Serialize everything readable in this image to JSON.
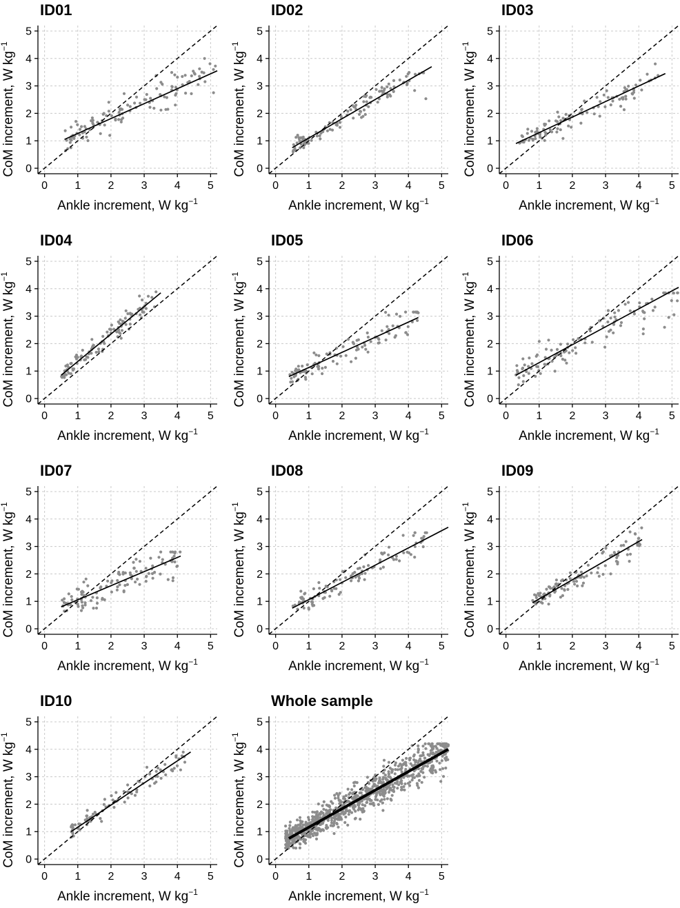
{
  "figure": {
    "xlabel": "Ankle increment, W kg",
    "ylabel": "CoM increment, W kg",
    "unit_exponent": "−1",
    "axis_ticks": [
      0,
      1,
      2,
      3,
      4,
      5
    ],
    "colors": {
      "points": "#8c8c8c",
      "lines": "#000000",
      "grid": "#c8c8c8"
    }
  },
  "chart_data": [
    {
      "type": "scatter",
      "title": "ID01",
      "xlim": [
        -0.2,
        5.2
      ],
      "ylim": [
        -0.2,
        5.2
      ],
      "xlabel": "Ankle increment, W kg⁻¹",
      "ylabel": "CoM increment, W kg⁻¹",
      "grid": true,
      "reference_line": "identity (dashed)",
      "fit": {
        "x": [
          0.6,
          5.2
        ],
        "y": [
          1.05,
          3.55
        ]
      },
      "points": {
        "n": 120,
        "x_range": [
          0.6,
          5.2
        ],
        "y_range": [
          0.55,
          4.0
        ],
        "spread": 0.38,
        "seed": 1
      }
    },
    {
      "type": "scatter",
      "title": "ID02",
      "xlim": [
        -0.2,
        5.2
      ],
      "ylim": [
        -0.2,
        5.2
      ],
      "xlabel": "Ankle increment, W kg⁻¹",
      "ylabel": "CoM increment, W kg⁻¹",
      "grid": true,
      "reference_line": "identity (dashed)",
      "fit": {
        "x": [
          0.5,
          4.7
        ],
        "y": [
          0.75,
          3.7
        ]
      },
      "points": {
        "n": 120,
        "x_range": [
          0.5,
          4.6
        ],
        "y_range": [
          0.6,
          3.9
        ],
        "spread": 0.26,
        "seed": 2
      }
    },
    {
      "type": "scatter",
      "title": "ID03",
      "xlim": [
        -0.2,
        5.2
      ],
      "ylim": [
        -0.2,
        5.2
      ],
      "xlabel": "Ankle increment, W kg⁻¹",
      "ylabel": "CoM increment, W kg⁻¹",
      "grid": true,
      "reference_line": "identity (dashed)",
      "fit": {
        "x": [
          0.3,
          4.8
        ],
        "y": [
          0.9,
          3.45
        ]
      },
      "points": {
        "n": 110,
        "x_range": [
          0.4,
          4.6
        ],
        "y_range": [
          0.6,
          3.8
        ],
        "spread": 0.3,
        "seed": 3
      }
    },
    {
      "type": "scatter",
      "title": "ID04",
      "xlim": [
        -0.2,
        5.2
      ],
      "ylim": [
        -0.2,
        5.2
      ],
      "xlabel": "Ankle increment, W kg⁻¹",
      "ylabel": "CoM increment, W kg⁻¹",
      "grid": true,
      "reference_line": "identity (dashed)",
      "fit": {
        "x": [
          0.5,
          3.5
        ],
        "y": [
          0.85,
          3.85
        ]
      },
      "points": {
        "n": 110,
        "x_range": [
          0.5,
          3.4
        ],
        "y_range": [
          0.7,
          3.95
        ],
        "spread": 0.22,
        "seed": 4
      }
    },
    {
      "type": "scatter",
      "title": "ID05",
      "xlim": [
        -0.2,
        5.2
      ],
      "ylim": [
        -0.2,
        5.2
      ],
      "xlabel": "Ankle increment, W kg⁻¹",
      "ylabel": "CoM increment, W kg⁻¹",
      "grid": true,
      "reference_line": "identity (dashed)",
      "fit": {
        "x": [
          0.4,
          4.3
        ],
        "y": [
          0.8,
          2.95
        ]
      },
      "points": {
        "n": 110,
        "x_range": [
          0.4,
          4.3
        ],
        "y_range": [
          0.6,
          3.15
        ],
        "spread": 0.3,
        "seed": 5
      }
    },
    {
      "type": "scatter",
      "title": "ID06",
      "xlim": [
        -0.2,
        5.2
      ],
      "ylim": [
        -0.2,
        5.2
      ],
      "xlabel": "Ankle increment, W kg⁻¹",
      "ylabel": "CoM increment, W kg⁻¹",
      "grid": true,
      "reference_line": "identity (dashed)",
      "fit": {
        "x": [
          0.3,
          5.2
        ],
        "y": [
          0.85,
          4.05
        ]
      },
      "points": {
        "n": 120,
        "x_range": [
          0.3,
          5.2
        ],
        "y_range": [
          0.5,
          3.85
        ],
        "spread": 0.42,
        "seed": 6
      }
    },
    {
      "type": "scatter",
      "title": "ID07",
      "xlim": [
        -0.2,
        5.2
      ],
      "ylim": [
        -0.2,
        5.2
      ],
      "xlabel": "Ankle increment, W kg⁻¹",
      "ylabel": "CoM increment, W kg⁻¹",
      "grid": true,
      "reference_line": "identity (dashed)",
      "fit": {
        "x": [
          0.5,
          4.1
        ],
        "y": [
          0.8,
          2.65
        ]
      },
      "points": {
        "n": 120,
        "x_range": [
          0.5,
          4.1
        ],
        "y_range": [
          0.4,
          2.8
        ],
        "spread": 0.38,
        "seed": 7
      }
    },
    {
      "type": "scatter",
      "title": "ID08",
      "xlim": [
        -0.2,
        5.2
      ],
      "ylim": [
        -0.2,
        5.2
      ],
      "xlabel": "Ankle increment, W kg⁻¹",
      "ylabel": "CoM increment, W kg⁻¹",
      "grid": true,
      "reference_line": "identity (dashed)",
      "fit": {
        "x": [
          0.5,
          5.2
        ],
        "y": [
          0.75,
          3.7
        ]
      },
      "points": {
        "n": 110,
        "x_range": [
          0.5,
          4.6
        ],
        "y_range": [
          0.5,
          3.5
        ],
        "spread": 0.3,
        "seed": 8
      }
    },
    {
      "type": "scatter",
      "title": "ID09",
      "xlim": [
        -0.2,
        5.2
      ],
      "ylim": [
        -0.2,
        5.2
      ],
      "xlabel": "Ankle increment, W kg⁻¹",
      "ylabel": "CoM increment, W kg⁻¹",
      "grid": true,
      "reference_line": "identity (dashed)",
      "fit": {
        "x": [
          0.8,
          4.1
        ],
        "y": [
          0.95,
          3.25
        ]
      },
      "points": {
        "n": 110,
        "x_range": [
          0.8,
          4.1
        ],
        "y_range": [
          0.9,
          3.8
        ],
        "spread": 0.3,
        "seed": 9
      }
    },
    {
      "type": "scatter",
      "title": "ID10",
      "xlim": [
        -0.2,
        5.2
      ],
      "ylim": [
        -0.2,
        5.2
      ],
      "xlabel": "Ankle increment, W kg⁻¹",
      "ylabel": "CoM increment, W kg⁻¹",
      "grid": true,
      "reference_line": "identity (dashed)",
      "fit": {
        "x": [
          0.8,
          4.4
        ],
        "y": [
          1.0,
          3.9
        ]
      },
      "points": {
        "n": 90,
        "x_range": [
          0.8,
          4.3
        ],
        "y_range": [
          0.8,
          4.2
        ],
        "spread": 0.24,
        "seed": 10
      }
    },
    {
      "type": "scatter",
      "title": "Whole sample",
      "xlim": [
        -0.2,
        5.2
      ],
      "ylim": [
        -0.2,
        5.2
      ],
      "xlabel": "Ankle increment, W kg⁻¹",
      "ylabel": "CoM increment, W kg⁻¹",
      "grid": true,
      "reference_line": "identity (dashed)",
      "fit": {
        "x": [
          0.4,
          5.2
        ],
        "y": [
          0.75,
          4.0
        ]
      },
      "fit_bold": true,
      "points": {
        "n": 900,
        "x_range": [
          0.3,
          5.2
        ],
        "y_range": [
          0.4,
          4.2
        ],
        "spread": 0.4,
        "seed": 11
      }
    }
  ]
}
